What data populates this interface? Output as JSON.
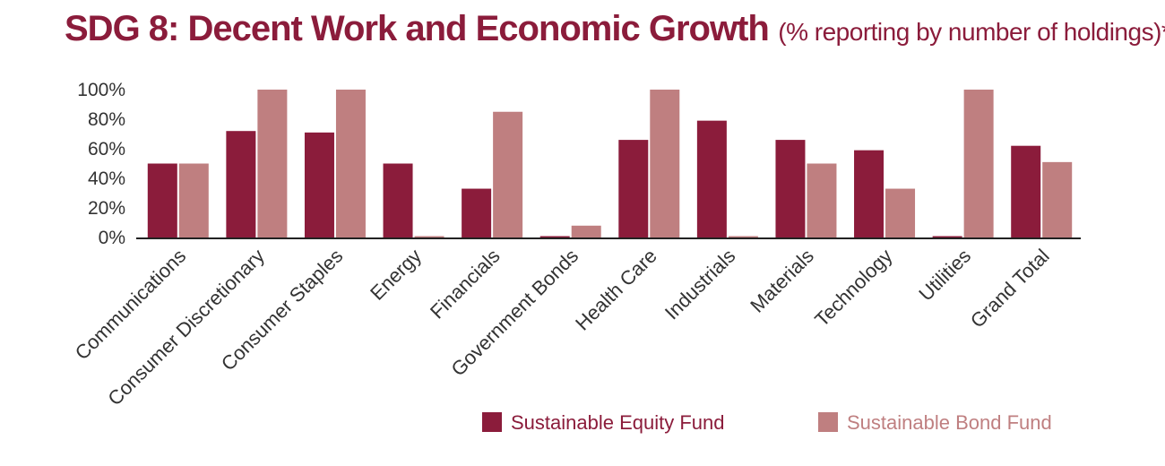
{
  "chart_data": {
    "type": "bar",
    "title": "SDG 8: Decent Work and Economic Growth",
    "subtitle": "(% reporting by number of holdings)*",
    "categories": [
      "Communications",
      "Consumer Discretionary",
      "Consumer Staples",
      "Energy",
      "Financials",
      "Government Bonds",
      "Health Care",
      "Industrials",
      "Materials",
      "Technology",
      "Utilities",
      "Grand Total"
    ],
    "series": [
      {
        "name": "Sustainable Equity Fund",
        "color": "#8b1c3b",
        "values": [
          50,
          72,
          71,
          50,
          33,
          0,
          66,
          79,
          66,
          59,
          0,
          62
        ]
      },
      {
        "name": "Sustainable Bond Fund",
        "color": "#bf7f80",
        "values": [
          50,
          100,
          100,
          0,
          85,
          8,
          100,
          0,
          50,
          33,
          100,
          51
        ]
      }
    ],
    "yticks": [
      "100%",
      "80%",
      "60%",
      "40%",
      "20%",
      "0%"
    ],
    "ytick_values": [
      100,
      80,
      60,
      40,
      20,
      0
    ],
    "ylim": [
      0,
      100
    ],
    "xlabel": "",
    "ylabel": "",
    "legend_position": "bottom-right"
  }
}
